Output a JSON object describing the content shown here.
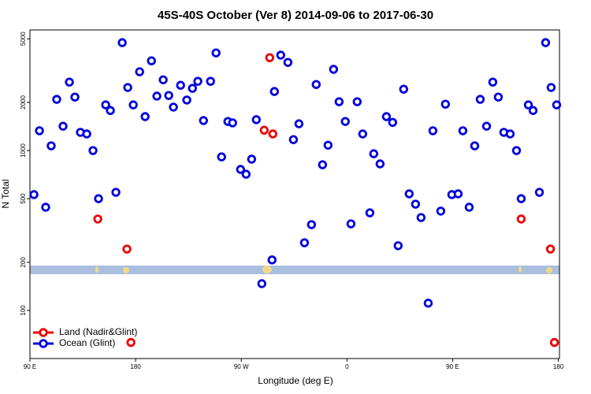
{
  "chart_data": {
    "type": "scatter",
    "title": "45S-40S October (Ver 8)   2014-09-06 to 2017-06-30",
    "x_label": "Longitude (deg E)",
    "y_label": "N Total",
    "log_y": true,
    "legend_position": "lower left",
    "xlim": [
      90,
      541
    ],
    "ylim": [
      50,
      5680
    ],
    "xticks": [
      {
        "value": 90,
        "label": "90 E"
      },
      {
        "value": 180,
        "label": "180"
      },
      {
        "value": 270,
        "label": "90 W"
      },
      {
        "value": 360,
        "label": "0"
      },
      {
        "value": 450,
        "label": "90 E"
      },
      {
        "value": 540,
        "label": "180"
      }
    ],
    "yticks": [
      100,
      200,
      500,
      1000,
      2000,
      5000
    ],
    "series": [
      {
        "name": "Land (Nadir&Glint)",
        "color": "#ee0000",
        "x": [
          147.8,
          172.6,
          176.0,
          289.5,
          294.2,
          296.9,
          508.4,
          533.3,
          536.7
        ],
        "values": [
          373,
          242,
          63,
          1340,
          3810,
          1270,
          373,
          242,
          63
        ]
      },
      {
        "name": "Ocean (Glint)",
        "color": "#0000dd",
        "x": [
          93.4,
          98.1,
          103.4,
          108.1,
          112.8,
          118.2,
          123.6,
          128.3,
          133.0,
          138.4,
          143.7,
          148.4,
          154.5,
          158.5,
          163.2,
          168.6,
          173.3,
          178.0,
          183.4,
          188.1,
          193.5,
          198.1,
          203.5,
          208.2,
          212.2,
          218.3,
          223.6,
          228.4,
          233.0,
          237.8,
          243.8,
          248.5,
          253.2,
          258.6,
          262.6,
          269.4,
          274.1,
          278.8,
          282.8,
          287.5,
          296.2,
          298.2,
          303.6,
          309.7,
          314.4,
          319.1,
          323.8,
          329.8,
          333.8,
          339.2,
          343.9,
          348.6,
          353.3,
          358.6,
          363.4,
          368.7,
          373.4,
          379.5,
          382.8,
          388.2,
          393.6,
          398.9,
          403.6,
          408.3,
          413.0,
          418.4,
          423.1,
          429.2,
          433.2,
          439.9,
          443.9,
          449.3,
          454.7,
          458.7,
          464.1,
          468.8,
          473.5,
          478.9,
          484.2,
          488.9,
          493.6,
          499.0,
          504.4,
          508.4,
          514.5,
          518.5,
          523.9,
          529.2,
          533.9,
          538.6
        ],
        "values": [
          530,
          1330,
          442,
          1070,
          2090,
          1420,
          2680,
          2160,
          1300,
          1270,
          1000,
          500,
          1930,
          1780,
          548,
          4730,
          2480,
          1930,
          3110,
          1630,
          3640,
          2190,
          2770,
          2210,
          1870,
          2560,
          2070,
          2450,
          2710,
          1540,
          2710,
          4080,
          913,
          1520,
          1490,
          762,
          711,
          883,
          1560,
          147,
          207,
          2340,
          3950,
          3560,
          1170,
          1470,
          265,
          344,
          2590,
          815,
          1080,
          3220,
          2020,
          1520,
          348,
          2020,
          1270,
          408,
          955,
          825,
          1630,
          1500,
          254,
          2420,
          536,
          462,
          381,
          111,
          1330,
          418,
          1950,
          530,
          536,
          1330,
          442,
          1070,
          2090,
          1420,
          2680,
          2160,
          1300,
          1270,
          1000,
          500,
          1930,
          1780,
          548,
          4730,
          2480,
          1930
        ]
      }
    ]
  }
}
